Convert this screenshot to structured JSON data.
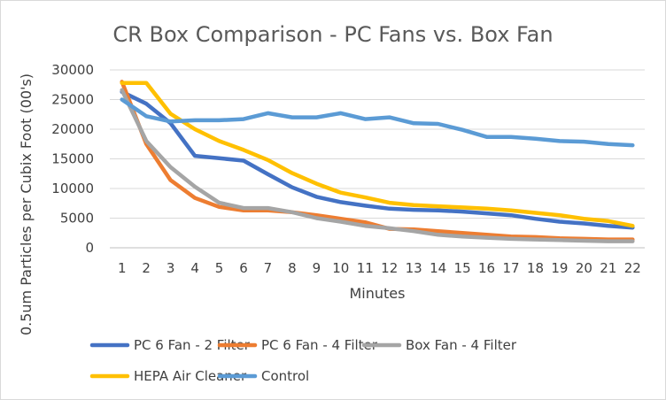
{
  "chart_data": {
    "type": "line",
    "title": "CR Box Comparison - PC Fans vs. Box Fan",
    "xlabel": "Minutes",
    "ylabel": "0.5um Particles per Cubix Foot (00's)",
    "ylim": [
      0,
      30000
    ],
    "yticks": [
      "0",
      "5000",
      "10000",
      "15000",
      "20000",
      "25000",
      "30000"
    ],
    "yticks_values": [
      0,
      5000,
      10000,
      15000,
      20000,
      25000,
      30000
    ],
    "categories": [
      "1",
      "2",
      "3",
      "4",
      "5",
      "6",
      "7",
      "8",
      "9",
      "10",
      "11",
      "12",
      "13",
      "14",
      "15",
      "16",
      "17",
      "18",
      "19",
      "20",
      "21",
      "22"
    ],
    "grid": true,
    "legend_position": "bottom",
    "series": [
      {
        "name": "PC 6 Fan - 2 Filter",
        "color": "#4472c4",
        "values": [
          26300,
          24300,
          21000,
          15500,
          15100,
          14700,
          12400,
          10200,
          8600,
          7700,
          7100,
          6600,
          6400,
          6300,
          6100,
          5800,
          5500,
          4900,
          4400,
          4100,
          3700,
          3400
        ]
      },
      {
        "name": "PC 6 Fan - 4 Filter",
        "color": "#ed7d31",
        "values": [
          28000,
          17500,
          11400,
          8400,
          6900,
          6300,
          6300,
          6000,
          5500,
          4900,
          4300,
          3200,
          3100,
          2800,
          2500,
          2200,
          1900,
          1800,
          1600,
          1500,
          1400,
          1400
        ]
      },
      {
        "name": "Box Fan - 4 Filter",
        "color": "#a5a5a5",
        "values": [
          26600,
          18000,
          13600,
          10300,
          7600,
          6700,
          6700,
          6000,
          5000,
          4400,
          3700,
          3300,
          2800,
          2200,
          1900,
          1700,
          1500,
          1400,
          1300,
          1200,
          1100,
          1100
        ]
      },
      {
        "name": "HEPA Air Cleaner",
        "color": "#ffc000",
        "values": [
          27800,
          27800,
          22600,
          20000,
          18000,
          16500,
          14800,
          12600,
          10800,
          9300,
          8500,
          7600,
          7200,
          7000,
          6800,
          6600,
          6300,
          5900,
          5500,
          4900,
          4500,
          3700
        ]
      },
      {
        "name": "Control",
        "color": "#5b9bd5",
        "values": [
          25000,
          22200,
          21300,
          21500,
          21500,
          21700,
          22700,
          22000,
          22000,
          22700,
          21700,
          22000,
          21000,
          20900,
          19900,
          18700,
          18700,
          18400,
          18000,
          17900,
          17500,
          17300
        ]
      }
    ]
  }
}
